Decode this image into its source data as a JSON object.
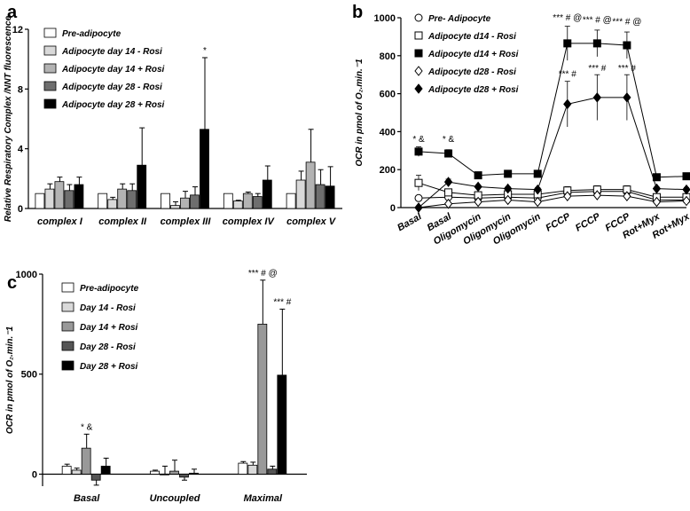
{
  "chart_data": [
    {
      "panel": "a",
      "type": "bar",
      "ylabel": "Relative Respiratory Complex /NNT fluorescence",
      "ylim": [
        0,
        12
      ],
      "yticks": [
        0,
        4,
        8,
        12
      ],
      "categories": [
        "complex I",
        "complex II",
        "complex III",
        "complex IV",
        "complex V"
      ],
      "series": [
        {
          "name": "Pre-adipocyte",
          "color": "#ffffff",
          "values": [
            1.0,
            1.0,
            1.0,
            1.0,
            1.0
          ],
          "errors": [
            0,
            0,
            0,
            0,
            0
          ]
        },
        {
          "name": "Adipocyte day 14 - Rosi",
          "color": "#d9d9d9",
          "values": [
            1.3,
            0.6,
            0.2,
            0.5,
            1.9
          ],
          "errors": [
            0.35,
            0.15,
            0.25,
            0.05,
            0.6
          ]
        },
        {
          "name": "Adipocyte day 14 + Rosi",
          "color": "#b3b3b3",
          "values": [
            1.8,
            1.3,
            0.7,
            1.0,
            3.1
          ],
          "errors": [
            0.3,
            0.35,
            0.45,
            0.1,
            2.2
          ]
        },
        {
          "name": "Adipocyte day 28 - Rosi",
          "color": "#6e6e6e",
          "values": [
            1.2,
            1.2,
            0.9,
            0.8,
            1.6
          ],
          "errors": [
            0.4,
            0.45,
            0.55,
            0.2,
            1.0
          ]
        },
        {
          "name": "Adipocyte day 28 + Rosi",
          "color": "#000000",
          "values": [
            1.6,
            2.9,
            5.3,
            1.9,
            1.5
          ],
          "errors": [
            0.5,
            2.5,
            4.8,
            0.95,
            1.3
          ]
        }
      ],
      "annotations": [
        {
          "category": "complex III",
          "series": 4,
          "text": "*"
        }
      ]
    },
    {
      "panel": "b",
      "type": "line",
      "ylabel": "OCR in pmol of O₂.min.⁻1",
      "ylim": [
        0,
        1000
      ],
      "yticks": [
        0,
        200,
        400,
        600,
        800,
        1000
      ],
      "x": [
        "Basal",
        "Basal",
        "Oligomycin",
        "Oligomycin",
        "Oligomycin",
        "FCCP",
        "FCCP",
        "FCCP",
        "Rot+Myx",
        "Rot+Myx"
      ],
      "series": [
        {
          "name": "Pre- Adipocyte",
          "marker": "circle-open",
          "values": [
            50,
            55,
            50,
            55,
            50,
            80,
            85,
            85,
            40,
            40
          ],
          "errors": [
            10,
            10,
            10,
            10,
            10,
            15,
            15,
            15,
            8,
            8
          ]
        },
        {
          "name": "Adipocyte d14 - Rosi",
          "marker": "square-open",
          "values": [
            130,
            80,
            65,
            70,
            70,
            90,
            95,
            95,
            55,
            55
          ],
          "errors": [
            40,
            15,
            10,
            10,
            10,
            20,
            20,
            20,
            10,
            10
          ]
        },
        {
          "name": "Adipocyte d14 + Rosi",
          "marker": "square-filled",
          "values": [
            295,
            285,
            170,
            178,
            178,
            865,
            865,
            855,
            160,
            165
          ],
          "errors": [
            25,
            20,
            15,
            15,
            15,
            90,
            70,
            70,
            10,
            10
          ]
        },
        {
          "name": "Adipocyte d28 - Rosi",
          "marker": "diamond-open",
          "values": [
            0,
            20,
            30,
            40,
            30,
            60,
            65,
            60,
            30,
            35
          ],
          "errors": [
            5,
            8,
            8,
            8,
            8,
            12,
            12,
            12,
            8,
            8
          ]
        },
        {
          "name": "Adipocyte d28 + Rosi",
          "marker": "diamond-filled",
          "values": [
            0,
            135,
            110,
            100,
            95,
            545,
            580,
            580,
            100,
            95
          ],
          "errors": [
            5,
            15,
            10,
            10,
            10,
            120,
            120,
            120,
            10,
            10
          ]
        }
      ],
      "annotations": [
        {
          "x_index": 0,
          "y": 345,
          "text": "* &"
        },
        {
          "x_index": 1,
          "y": 345,
          "text": "* &"
        },
        {
          "x_index": 5,
          "y": 985,
          "text": "*** # @"
        },
        {
          "x_index": 6,
          "y": 975,
          "text": "*** # @"
        },
        {
          "x_index": 7,
          "y": 965,
          "text": "*** # @"
        },
        {
          "x_index": 5,
          "y": 690,
          "text": "*** #"
        },
        {
          "x_index": 6,
          "y": 720,
          "text": "*** #"
        },
        {
          "x_index": 7,
          "y": 720,
          "text": "*** #"
        }
      ]
    },
    {
      "panel": "c",
      "type": "bar",
      "ylabel": "OCR in pmol of O₂.min.⁻1",
      "ylim": [
        -60,
        1000
      ],
      "yticks": [
        0,
        500,
        1000
      ],
      "categories": [
        "Basal",
        "Uncoupled",
        "Maximal"
      ],
      "series": [
        {
          "name": "Pre-adipocyte",
          "color": "#ffffff",
          "values": [
            40,
            15,
            55
          ],
          "errors": [
            10,
            5,
            8
          ]
        },
        {
          "name": "Day 14 - Rosi",
          "color": "#d9d9d9",
          "values": [
            20,
            0,
            45
          ],
          "errors": [
            10,
            40,
            15
          ]
        },
        {
          "name": "Day 14 + Rosi",
          "color": "#999999",
          "values": [
            130,
            15,
            750
          ],
          "errors": [
            70,
            55,
            220
          ]
        },
        {
          "name": "Day 28 - Rosi",
          "color": "#555555",
          "values": [
            -30,
            -15,
            25
          ],
          "errors": [
            25,
            15,
            15
          ]
        },
        {
          "name": "Day 28 + Rosi",
          "color": "#000000",
          "values": [
            40,
            5,
            495
          ],
          "errors": [
            40,
            20,
            330
          ]
        }
      ],
      "annotations": [
        {
          "category": "Basal",
          "series": 2,
          "text": "* &"
        },
        {
          "category": "Maximal",
          "series": 2,
          "text": "*** # @"
        },
        {
          "category": "Maximal",
          "series": 4,
          "text": "*** #"
        }
      ]
    }
  ],
  "panels": {
    "a": "a",
    "b": "b",
    "c": "c"
  }
}
